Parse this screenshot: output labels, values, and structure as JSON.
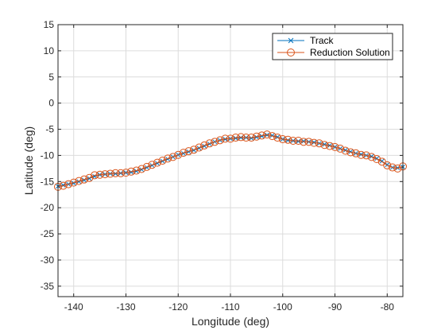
{
  "chart_data": {
    "type": "line",
    "title": "",
    "xlabel": "Longitude (deg)",
    "ylabel": "Latitude (deg)",
    "xlim": [
      -143,
      -77
    ],
    "ylim": [
      -37,
      15
    ],
    "xticks": [
      -140,
      -130,
      -120,
      -110,
      -100,
      -90,
      -80
    ],
    "yticks": [
      -35,
      -30,
      -25,
      -20,
      -15,
      -10,
      -5,
      0,
      5,
      10,
      15
    ],
    "xtick_labels": [
      "-140",
      "-130",
      "-120",
      "-110",
      "-100",
      "-90",
      "-80"
    ],
    "ytick_labels": [
      "-35",
      "-30",
      "-25",
      "-20",
      "-15",
      "-10",
      "-5",
      "0",
      "5",
      "10",
      "15"
    ],
    "grid": true,
    "legend_position": "top-right",
    "series": [
      {
        "name": "Track",
        "color": "#0072BD",
        "marker": "x",
        "x": [
          -143,
          -142,
          -141,
          -140,
          -139,
          -138,
          -137,
          -136,
          -135,
          -134,
          -133,
          -132,
          -131,
          -130,
          -129,
          -128,
          -127,
          -126,
          -125,
          -124,
          -123,
          -122,
          -121,
          -120,
          -119,
          -118,
          -117,
          -116,
          -115,
          -114,
          -113,
          -112,
          -111,
          -110,
          -109,
          -108,
          -107,
          -106,
          -105,
          -104,
          -103,
          -102,
          -101,
          -100,
          -99,
          -98,
          -97,
          -96,
          -95,
          -94,
          -93,
          -92,
          -91,
          -90,
          -89,
          -88,
          -87,
          -86,
          -85,
          -84,
          -83,
          -82,
          -81,
          -80,
          -79,
          -78,
          -77
        ],
        "y": [
          -15.9,
          -15.7,
          -15.5,
          -15.3,
          -15.0,
          -14.7,
          -14.4,
          -14.0,
          -13.7,
          -13.6,
          -13.5,
          -13.5,
          -13.4,
          -13.3,
          -13.2,
          -13.0,
          -12.7,
          -12.3,
          -11.9,
          -11.5,
          -11.1,
          -10.7,
          -10.3,
          -9.9,
          -9.6,
          -9.3,
          -9.0,
          -8.6,
          -8.2,
          -7.8,
          -7.4,
          -7.1,
          -6.9,
          -6.8,
          -6.7,
          -6.6,
          -6.6,
          -6.7,
          -6.5,
          -6.3,
          -6.1,
          -6.2,
          -6.5,
          -6.9,
          -7.1,
          -7.2,
          -7.3,
          -7.3,
          -7.4,
          -7.5,
          -7.7,
          -7.9,
          -8.1,
          -8.4,
          -8.7,
          -9.0,
          -9.3,
          -9.6,
          -9.8,
          -10.0,
          -10.2,
          -10.6,
          -11.1,
          -11.8,
          -12.3,
          -12.4,
          -12.2
        ]
      },
      {
        "name": "Reduction Solution",
        "color": "#D95319",
        "marker": "o",
        "x": [
          -143,
          -142,
          -141,
          -140,
          -139,
          -138,
          -137,
          -136,
          -135,
          -134,
          -133,
          -132,
          -131,
          -130,
          -129,
          -128,
          -127,
          -126,
          -125,
          -124,
          -123,
          -122,
          -121,
          -120,
          -119,
          -118,
          -117,
          -116,
          -115,
          -114,
          -113,
          -112,
          -111,
          -110,
          -109,
          -108,
          -107,
          -106,
          -105,
          -104,
          -103,
          -102,
          -101,
          -100,
          -99,
          -98,
          -97,
          -96,
          -95,
          -94,
          -93,
          -92,
          -91,
          -90,
          -89,
          -88,
          -87,
          -86,
          -85,
          -84,
          -83,
          -82,
          -81,
          -80,
          -79,
          -78,
          -77
        ],
        "y": [
          -16.0,
          -15.8,
          -15.5,
          -15.2,
          -14.9,
          -14.6,
          -14.3,
          -13.8,
          -13.7,
          -13.6,
          -13.5,
          -13.4,
          -13.4,
          -13.3,
          -13.1,
          -12.9,
          -12.6,
          -12.2,
          -11.8,
          -11.4,
          -11.0,
          -10.6,
          -10.3,
          -9.9,
          -9.5,
          -9.2,
          -8.9,
          -8.5,
          -8.1,
          -7.7,
          -7.4,
          -7.1,
          -6.8,
          -6.8,
          -6.6,
          -6.5,
          -6.6,
          -6.6,
          -6.4,
          -6.2,
          -6.0,
          -6.3,
          -6.6,
          -6.9,
          -7.0,
          -7.2,
          -7.2,
          -7.4,
          -7.4,
          -7.6,
          -7.7,
          -8.0,
          -8.2,
          -8.4,
          -8.7,
          -9.1,
          -9.4,
          -9.6,
          -9.9,
          -10.0,
          -10.3,
          -10.7,
          -11.2,
          -11.9,
          -12.3,
          -12.5,
          -12.1
        ]
      }
    ]
  }
}
